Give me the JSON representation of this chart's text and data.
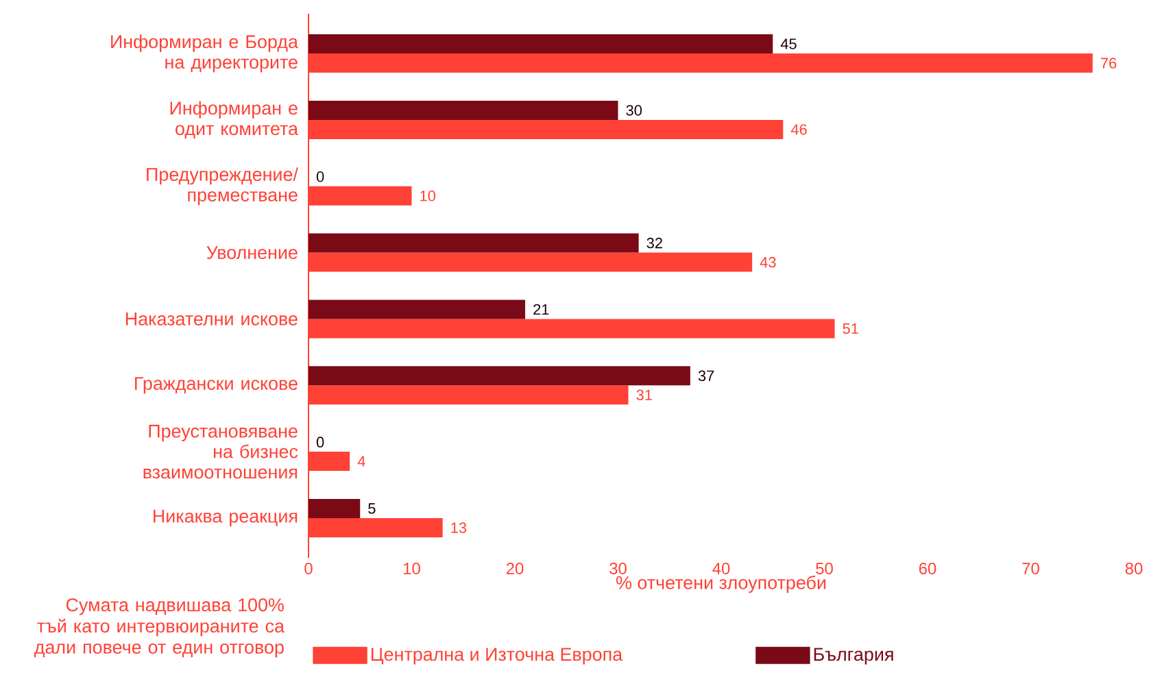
{
  "chart_data": {
    "type": "bar",
    "orientation": "horizontal",
    "categories": [
      "Информиран е Борда на директорите",
      "Информиран е одит комитета",
      "Предупреждение/ преместване",
      "Уволнение",
      "Наказателни искове",
      "Граждански искове",
      "Преустановяване на бизнес взаимоотношения",
      "Никаква реакция"
    ],
    "series": [
      {
        "name": "Централна и Източна Европа",
        "color": "#ff4136",
        "values": [
          76,
          46,
          10,
          43,
          51,
          31,
          4,
          13
        ]
      },
      {
        "name": "България",
        "color": "#7a0a16",
        "values": [
          45,
          30,
          0,
          32,
          21,
          37,
          0,
          5
        ]
      }
    ],
    "xlabel": "% отчетени злоупотреби",
    "xlim": [
      0,
      80
    ],
    "xticks": [
      0,
      10,
      20,
      30,
      40,
      50,
      60,
      70,
      80
    ],
    "data_labels": true,
    "legend": "bottom",
    "grid": false,
    "annotations": [
      "Сумата надвишава 100% тъй като интервюираните са дали повече от един отговор"
    ]
  }
}
